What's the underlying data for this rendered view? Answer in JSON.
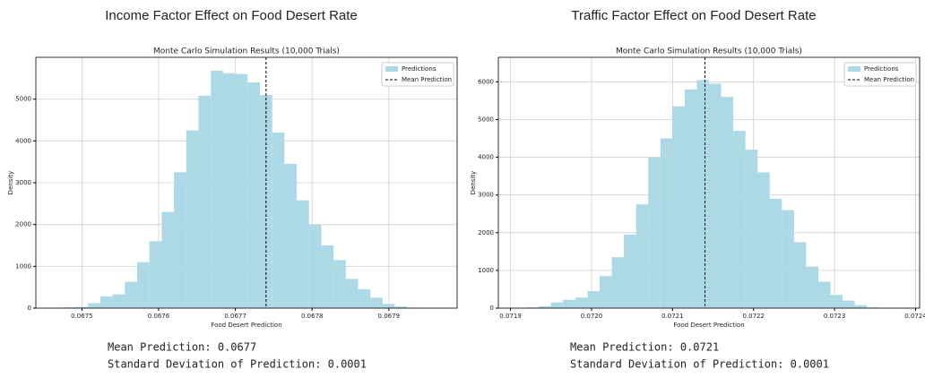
{
  "chart_data": [
    {
      "type": "histogram",
      "title": "Income Factor Effect on Food Desert Rate",
      "subtitle": "Monte Carlo Simulation Results (10,000 Trials)",
      "x_label": "Food Desert Prediction",
      "y_label": "Density",
      "bins": [
        0.06746,
        0.067476,
        0.067492,
        0.067508,
        0.067524,
        0.06754,
        0.067556,
        0.067572,
        0.067588,
        0.067604,
        0.06762,
        0.067636,
        0.067652,
        0.067668,
        0.067684,
        0.0677,
        0.067716,
        0.067732,
        0.067748,
        0.067764,
        0.06778,
        0.067796,
        0.067812,
        0.067828,
        0.067844,
        0.06786,
        0.067876,
        0.067892,
        0.067908,
        0.067924,
        0.06794
      ],
      "series": [
        {
          "name": "Predictions",
          "color": "#add8e6",
          "values": [
            10,
            20,
            30,
            120,
            280,
            330,
            630,
            1100,
            1600,
            2300,
            3250,
            4250,
            5080,
            5680,
            5620,
            5600,
            5400,
            5100,
            4200,
            3450,
            2580,
            2000,
            1500,
            1150,
            700,
            450,
            250,
            100,
            40,
            10
          ]
        }
      ],
      "mean_line": {
        "name": "Mean Prediction",
        "value": 0.06774,
        "color": "#000000"
      },
      "xlim": [
        0.06744,
        0.067989
      ],
      "xticks": [
        0.0675,
        0.0676,
        0.0677,
        0.0678,
        0.0679
      ],
      "ylim": [
        0,
        6000
      ],
      "yticks": [
        0,
        1000,
        2000,
        3000,
        4000,
        5000
      ],
      "grid": true,
      "legend": "upper-right",
      "annotations": [
        "Mean Prediction:  0.0677",
        "Standard Deviation of Prediction:  0.0001"
      ]
    },
    {
      "type": "histogram",
      "title": "Traffic Factor Effect on Food Desert Rate",
      "subtitle": "Monte Carlo Simulation Results (10,000 Trials)",
      "x_label": "Food Desert Prediction",
      "y_label": "Density",
      "bins": [
        0.071905,
        0.07192,
        0.071935,
        0.07195,
        0.071965,
        0.07198,
        0.071995,
        0.07201,
        0.072025,
        0.07204,
        0.072055,
        0.07207,
        0.072085,
        0.0721,
        0.072115,
        0.07213,
        0.072145,
        0.07216,
        0.072175,
        0.07219,
        0.072205,
        0.07222,
        0.072235,
        0.07225,
        0.072265,
        0.07228,
        0.072295,
        0.07231,
        0.072325,
        0.07234,
        0.072355
      ],
      "series": [
        {
          "name": "Predictions",
          "color": "#add8e6",
          "values": [
            5,
            20,
            50,
            150,
            220,
            280,
            450,
            850,
            1350,
            1950,
            2750,
            4000,
            4500,
            5350,
            5800,
            6050,
            5950,
            5600,
            4700,
            4200,
            3600,
            2900,
            2600,
            1750,
            1100,
            700,
            350,
            200,
            80,
            20
          ]
        }
      ],
      "mean_line": {
        "name": "Mean Prediction",
        "value": 0.07214,
        "color": "#000000"
      },
      "xlim": [
        0.071885,
        0.072405
      ],
      "xticks": [
        0.0719,
        {
          "value": 0.072,
          "label": "0.0720"
        },
        0.0721,
        0.0722,
        0.0723,
        0.0724
      ],
      "ylim": [
        0,
        6650
      ],
      "yticks": [
        0,
        1000,
        2000,
        3000,
        4000,
        5000,
        6000
      ],
      "grid": true,
      "legend": "upper-right",
      "annotations": [
        "Mean Prediction: 0.0721",
        "Standard Deviation of Prediction: 0.0001"
      ]
    }
  ]
}
